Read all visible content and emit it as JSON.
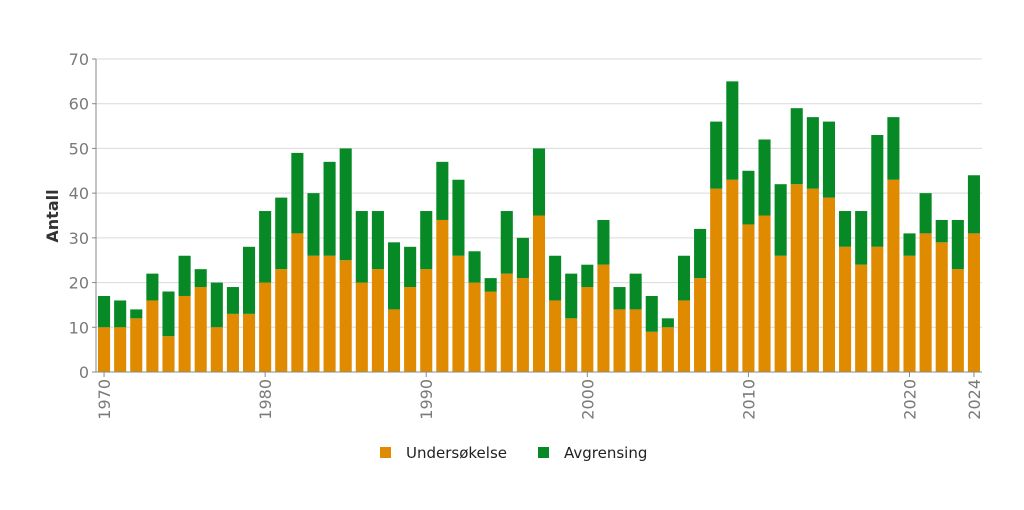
{
  "chart_data": {
    "type": "bar",
    "stacked": true,
    "ylabel": "Antall",
    "xlabel": "",
    "ylim": [
      0,
      70
    ],
    "yticks": [
      0,
      10,
      20,
      30,
      40,
      50,
      60,
      70
    ],
    "xticks": [
      "1970",
      "1980",
      "1990",
      "2000",
      "2010",
      "2020",
      "2024"
    ],
    "grid": true,
    "legend_position": "bottom",
    "categories": [
      "1970",
      "1971",
      "1972",
      "1973",
      "1974",
      "1975",
      "1976",
      "1977",
      "1978",
      "1979",
      "1980",
      "1981",
      "1982",
      "1983",
      "1984",
      "1985",
      "1986",
      "1987",
      "1988",
      "1989",
      "1990",
      "1991",
      "1992",
      "1993",
      "1994",
      "1995",
      "1996",
      "1997",
      "1998",
      "1999",
      "2000",
      "2001",
      "2002",
      "2003",
      "2004",
      "2005",
      "2006",
      "2007",
      "2008",
      "2009",
      "2010",
      "2011",
      "2012",
      "2013",
      "2014",
      "2015",
      "2016",
      "2017",
      "2018",
      "2019",
      "2020",
      "2021",
      "2022",
      "2023",
      "2024"
    ],
    "series": [
      {
        "name": "Undersøkelse",
        "color": "#e08a00",
        "values": [
          10,
          10,
          12,
          16,
          8,
          17,
          19,
          10,
          13,
          13,
          20,
          23,
          31,
          26,
          26,
          25,
          20,
          23,
          14,
          19,
          23,
          34,
          26,
          20,
          18,
          22,
          21,
          35,
          16,
          12,
          19,
          24,
          14,
          14,
          9,
          10,
          16,
          21,
          41,
          43,
          33,
          35,
          26,
          42,
          41,
          39,
          28,
          24,
          28,
          43,
          26,
          31,
          29,
          23,
          31
        ]
      },
      {
        "name": "Avgrensing",
        "color": "#078a25",
        "values": [
          7,
          6,
          2,
          6,
          10,
          9,
          4,
          10,
          6,
          15,
          16,
          16,
          18,
          14,
          21,
          25,
          16,
          13,
          15,
          9,
          13,
          13,
          17,
          7,
          3,
          14,
          9,
          15,
          10,
          10,
          5,
          10,
          5,
          8,
          8,
          2,
          10,
          11,
          15,
          22,
          12,
          17,
          16,
          17,
          16,
          17,
          8,
          12,
          25,
          14,
          5,
          9,
          5,
          11,
          13
        ]
      }
    ]
  }
}
